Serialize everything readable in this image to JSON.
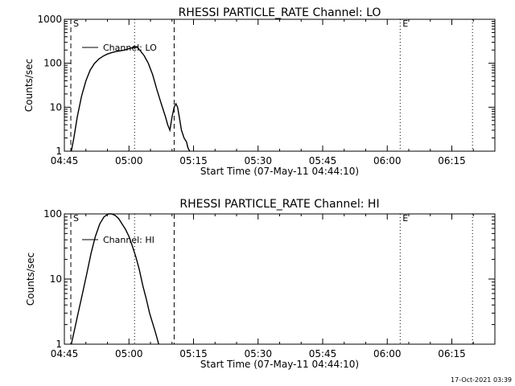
{
  "footer": {
    "timestamp": "17-Oct-2021 03:39"
  },
  "chart_data": [
    {
      "type": "line",
      "title": "RHESSI PARTICLE_RATE Channel: LO",
      "xlabel": "Start Time (07-May-11 04:44:10)",
      "ylabel": "Counts/sec",
      "yscale": "log",
      "xlim": [
        0,
        100
      ],
      "ylim": [
        1,
        1000
      ],
      "xticks": [
        {
          "label": "04:45",
          "value": 0
        },
        {
          "label": "05:00",
          "value": 15
        },
        {
          "label": "05:15",
          "value": 30
        },
        {
          "label": "05:30",
          "value": 45
        },
        {
          "label": "05:45",
          "value": 60
        },
        {
          "label": "06:00",
          "value": 75
        },
        {
          "label": "06:15",
          "value": 90
        }
      ],
      "yticks": [
        {
          "label": "1",
          "value": 1
        },
        {
          "label": "10",
          "value": 10
        },
        {
          "label": "100",
          "value": 100
        },
        {
          "label": "1000",
          "value": 1000
        }
      ],
      "legend": {
        "entry": "Channel: LO",
        "position": "top-left"
      },
      "markers": [
        {
          "label": "S",
          "x": 1.5,
          "style": "dashed"
        },
        {
          "label": "",
          "x": 25.5,
          "style": "dashed"
        },
        {
          "label": "",
          "x": 16.3,
          "style": "dotted"
        },
        {
          "label": "E",
          "x": 78.0,
          "style": "dotted"
        },
        {
          "label": "",
          "x": 94.8,
          "style": "dotted"
        }
      ],
      "series": [
        {
          "x": [
            1.6,
            2.2,
            3.0,
            4.0,
            5.0,
            6.0,
            7.0,
            8.0,
            9.0,
            10.0,
            11.0,
            12.0,
            13.0,
            14.0,
            15.0,
            16.0,
            16.8,
            17.5,
            18.5,
            19.5,
            20.5,
            21.5,
            22.5,
            23.5,
            24.0,
            24.5,
            25.0,
            25.5,
            25.9,
            26.3,
            26.7,
            27.2,
            27.8,
            28.4,
            28.7,
            29.1
          ],
          "y": [
            1,
            2,
            6,
            18,
            40,
            70,
            100,
            125,
            145,
            162,
            175,
            185,
            192,
            200,
            215,
            230,
            240,
            200,
            150,
            100,
            55,
            25,
            12,
            6,
            4,
            3,
            6,
            10,
            12,
            10,
            6,
            3,
            2,
            1.6,
            1.2,
            1
          ]
        }
      ]
    },
    {
      "type": "line",
      "title": "RHESSI PARTICLE_RATE Channel: HI",
      "xlabel": "Start Time (07-May-11 04:44:10)",
      "ylabel": "Counts/sec",
      "yscale": "log",
      "xlim": [
        0,
        100
      ],
      "ylim": [
        1,
        100
      ],
      "xticks": [
        {
          "label": "04:45",
          "value": 0
        },
        {
          "label": "05:00",
          "value": 15
        },
        {
          "label": "05:15",
          "value": 30
        },
        {
          "label": "05:30",
          "value": 45
        },
        {
          "label": "05:45",
          "value": 60
        },
        {
          "label": "06:00",
          "value": 75
        },
        {
          "label": "06:15",
          "value": 90
        }
      ],
      "yticks": [
        {
          "label": "1",
          "value": 1
        },
        {
          "label": "10",
          "value": 10
        },
        {
          "label": "100",
          "value": 100
        }
      ],
      "legend": {
        "entry": "Channel: HI",
        "position": "top-left"
      },
      "markers": [
        {
          "label": "S",
          "x": 1.5,
          "style": "dashed"
        },
        {
          "label": "",
          "x": 25.5,
          "style": "dashed"
        },
        {
          "label": "",
          "x": 16.3,
          "style": "dotted"
        },
        {
          "label": "E",
          "x": 78.0,
          "style": "dotted"
        },
        {
          "label": "",
          "x": 94.8,
          "style": "dotted"
        }
      ],
      "series": [
        {
          "x": [
            1.6,
            2.3,
            3.2,
            4.2,
            5.2,
            6.2,
            7.2,
            8.2,
            9.2,
            10.2,
            11.0,
            11.8,
            12.6,
            13.4,
            14.2,
            15.0,
            15.8,
            16.6,
            17.4,
            18.2,
            19.0,
            19.8,
            20.6,
            21.3,
            21.9
          ],
          "y": [
            1,
            1.6,
            3,
            6,
            12,
            25,
            45,
            70,
            90,
            100,
            100,
            95,
            85,
            70,
            58,
            45,
            32,
            22,
            14,
            8,
            5,
            3,
            2,
            1.4,
            1
          ]
        }
      ]
    }
  ]
}
